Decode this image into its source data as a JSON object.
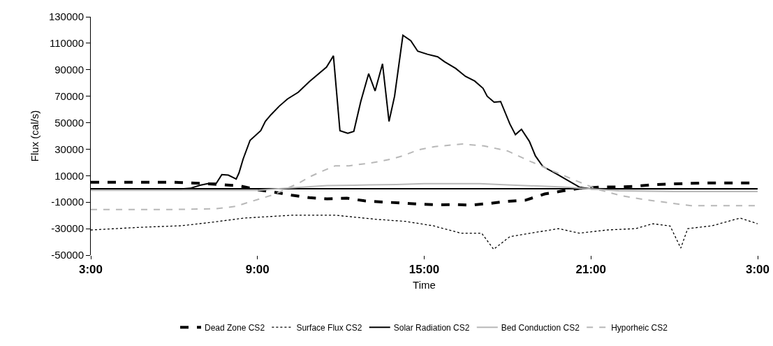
{
  "chart_data": {
    "type": "line",
    "xlabel": "Time",
    "ylabel": "Flux (cal/s)",
    "xlim": [
      "2000-01-01T03:00",
      "2000-01-02T03:00"
    ],
    "xticks": [
      {
        "value": "2000-01-01T03:00",
        "label": "3:00"
      },
      {
        "value": "2000-01-01T09:00",
        "label": "9:00"
      },
      {
        "value": "2000-01-01T15:00",
        "label": "15:00"
      },
      {
        "value": "2000-01-01T21:00",
        "label": "21:00"
      },
      {
        "value": "2000-01-02T03:00",
        "label": "3:00"
      }
    ],
    "ylim": [
      -50000,
      130000
    ],
    "yticks": [
      -50000,
      -30000,
      -10000,
      10000,
      30000,
      50000,
      70000,
      90000,
      110000,
      130000
    ],
    "grid": false,
    "legend": "bottom",
    "marker": "none",
    "series": [
      {
        "name": "Dead Zone CS2",
        "color": "#000000",
        "line_style": "dashed",
        "x": [
          "2000-01-01T03:00",
          "2000-01-01T04:00",
          "2000-01-01T05:00",
          "2000-01-01T06:00",
          "2000-01-01T06:20",
          "2000-01-01T07:00",
          "2000-01-01T07:39",
          "2000-01-01T08:20",
          "2000-01-01T08:59",
          "2000-01-01T09:35",
          "2000-01-01T10:14",
          "2000-01-01T10:52",
          "2000-01-01T11:30",
          "2000-01-01T12:13",
          "2000-01-01T12:51",
          "2000-01-01T13:29",
          "2000-01-01T14:06",
          "2000-01-01T14:48",
          "2000-01-01T15:30",
          "2000-01-01T16:06",
          "2000-01-01T16:44",
          "2000-01-01T17:24",
          "2000-01-01T18:00",
          "2000-01-01T18:39",
          "2000-01-01T19:20",
          "2000-01-01T20:00",
          "2000-01-01T20:36",
          "2000-01-01T21:18",
          "2000-01-01T22:00",
          "2000-01-01T22:36",
          "2000-01-01T23:18",
          "2000-01-02T00:00",
          "2000-01-02T00:36",
          "2000-01-02T01:00",
          "2000-01-02T02:00",
          "2000-01-02T03:00"
        ],
        "values": [
          5000,
          5000,
          5000,
          5000,
          4700,
          4200,
          3300,
          2400,
          -500,
          -2400,
          -4700,
          -6600,
          -7500,
          -7000,
          -9000,
          -9900,
          -10500,
          -11500,
          -12000,
          -11800,
          -12200,
          -10800,
          -9400,
          -8500,
          -3800,
          -1400,
          500,
          1400,
          1500,
          2000,
          3300,
          3800,
          4200,
          4500,
          4500,
          4500
        ]
      },
      {
        "name": "Surface Flux CS2",
        "color": "#000000",
        "line_style": "dotted",
        "x": [
          "2000-01-01T03:00",
          "2000-01-01T04:46",
          "2000-01-01T06:16",
          "2000-01-01T07:16",
          "2000-01-01T08:32",
          "2000-01-01T10:17",
          "2000-01-01T11:47",
          "2000-01-01T13:18",
          "2000-01-01T14:19",
          "2000-01-01T15:19",
          "2000-01-01T16:19",
          "2000-01-01T17:04",
          "2000-01-01T17:30",
          "2000-01-01T18:05",
          "2000-01-01T18:50",
          "2000-01-01T19:50",
          "2000-01-01T20:35",
          "2000-01-01T21:35",
          "2000-01-01T22:36",
          "2000-01-01T23:14",
          "2000-01-01T23:51",
          "2000-01-02T00:14",
          "2000-01-02T00:29",
          "2000-01-02T01:22",
          "2000-01-02T02:22",
          "2000-01-02T03:00"
        ],
        "values": [
          -31000,
          -29000,
          -27800,
          -25400,
          -22000,
          -19800,
          -19800,
          -23000,
          -24500,
          -27800,
          -33400,
          -33400,
          -45600,
          -36000,
          -33400,
          -30000,
          -33400,
          -31000,
          -30000,
          -26300,
          -28000,
          -44700,
          -30000,
          -27800,
          -22000,
          -26300
        ]
      },
      {
        "name": "Solar Radiation CS2",
        "color": "#000000",
        "line_style": "solid",
        "x": [
          "2000-01-01T03:00",
          "2000-01-01T06:16",
          "2000-01-01T06:35",
          "2000-01-01T06:56",
          "2000-01-01T07:16",
          "2000-01-01T07:31",
          "2000-01-01T07:43",
          "2000-01-01T07:57",
          "2000-01-01T08:14",
          "2000-01-01T08:20",
          "2000-01-01T08:29",
          "2000-01-01T08:44",
          "2000-01-01T09:07",
          "2000-01-01T09:17",
          "2000-01-01T09:29",
          "2000-01-01T09:47",
          "2000-01-01T10:05",
          "2000-01-01T10:28",
          "2000-01-01T10:52",
          "2000-01-01T11:29",
          "2000-01-01T11:44",
          "2000-01-01T11:58",
          "2000-01-01T12:15",
          "2000-01-01T12:28",
          "2000-01-01T12:43",
          "2000-01-01T13:00",
          "2000-01-01T13:14",
          "2000-01-01T13:30",
          "2000-01-01T13:44",
          "2000-01-01T13:56",
          "2000-01-01T14:14",
          "2000-01-01T14:31",
          "2000-01-01T14:46",
          "2000-01-01T15:07",
          "2000-01-01T15:29",
          "2000-01-01T15:44",
          "2000-01-01T16:08",
          "2000-01-01T16:29",
          "2000-01-01T16:49",
          "2000-01-01T17:07",
          "2000-01-01T17:16",
          "2000-01-01T17:31",
          "2000-01-01T17:45",
          "2000-01-01T18:05",
          "2000-01-01T18:17",
          "2000-01-01T18:30",
          "2000-01-01T18:47",
          "2000-01-01T19:00",
          "2000-01-01T19:16",
          "2000-01-01T19:46",
          "2000-01-01T20:16",
          "2000-01-01T20:35",
          "2000-01-01T21:01",
          "2000-01-02T03:00"
        ],
        "values": [
          0,
          0,
          500,
          2800,
          4200,
          4200,
          10800,
          10400,
          7500,
          12000,
          22600,
          36700,
          44000,
          51000,
          56000,
          62500,
          68000,
          73000,
          81000,
          92000,
          100500,
          44000,
          42000,
          43500,
          66000,
          87000,
          74000,
          94500,
          51000,
          70000,
          116000,
          112000,
          104000,
          101700,
          99800,
          96000,
          91000,
          85000,
          81500,
          76000,
          70000,
          65500,
          66000,
          49000,
          41000,
          45000,
          36000,
          25000,
          17000,
          11300,
          5200,
          1400,
          0,
          0
        ]
      },
      {
        "name": "Bed Conduction CS2",
        "color": "#b8b8b8",
        "line_style": "solid",
        "x": [
          "2000-01-01T03:00",
          "2000-01-01T09:00",
          "2000-01-01T10:00",
          "2000-01-01T11:30",
          "2000-01-01T13:00",
          "2000-01-01T14:00",
          "2000-01-01T15:00",
          "2000-01-01T17:00",
          "2000-01-01T18:00",
          "2000-01-01T20:00",
          "2000-01-01T21:00",
          "2000-01-01T22:00",
          "2000-01-02T00:00",
          "2000-01-02T03:00"
        ],
        "values": [
          -1000,
          -1000,
          500,
          2500,
          3000,
          3300,
          4000,
          4000,
          3000,
          1500,
          0,
          -1500,
          -2000,
          -2000
        ]
      },
      {
        "name": "Hyporheic CS2",
        "color": "#b8b8b8",
        "line_style": "dashed",
        "x": [
          "2000-01-01T03:00",
          "2000-01-01T06:00",
          "2000-01-01T07:30",
          "2000-01-01T08:12",
          "2000-01-01T09:36",
          "2000-01-01T10:02",
          "2000-01-01T10:28",
          "2000-01-01T10:52",
          "2000-01-01T11:17",
          "2000-01-01T11:48",
          "2000-01-01T12:18",
          "2000-01-01T12:58",
          "2000-01-01T13:23",
          "2000-01-01T13:48",
          "2000-01-01T14:14",
          "2000-01-01T14:48",
          "2000-01-01T15:23",
          "2000-01-01T16:23",
          "2000-01-01T17:09",
          "2000-01-01T18:00",
          "2000-01-01T18:50",
          "2000-01-01T19:40",
          "2000-01-01T20:25",
          "2000-01-01T21:16",
          "2000-01-01T22:06",
          "2000-01-01T22:55",
          "2000-01-01T23:47",
          "2000-01-02T00:36",
          "2000-01-02T03:00"
        ],
        "values": [
          -15500,
          -15500,
          -15000,
          -13200,
          -4200,
          0,
          4200,
          9000,
          13000,
          17500,
          17500,
          19300,
          20700,
          22500,
          25000,
          29600,
          32000,
          33900,
          32500,
          28700,
          20700,
          13200,
          6600,
          -500,
          -5200,
          -8000,
          -10400,
          -12700,
          -12700
        ]
      }
    ]
  }
}
